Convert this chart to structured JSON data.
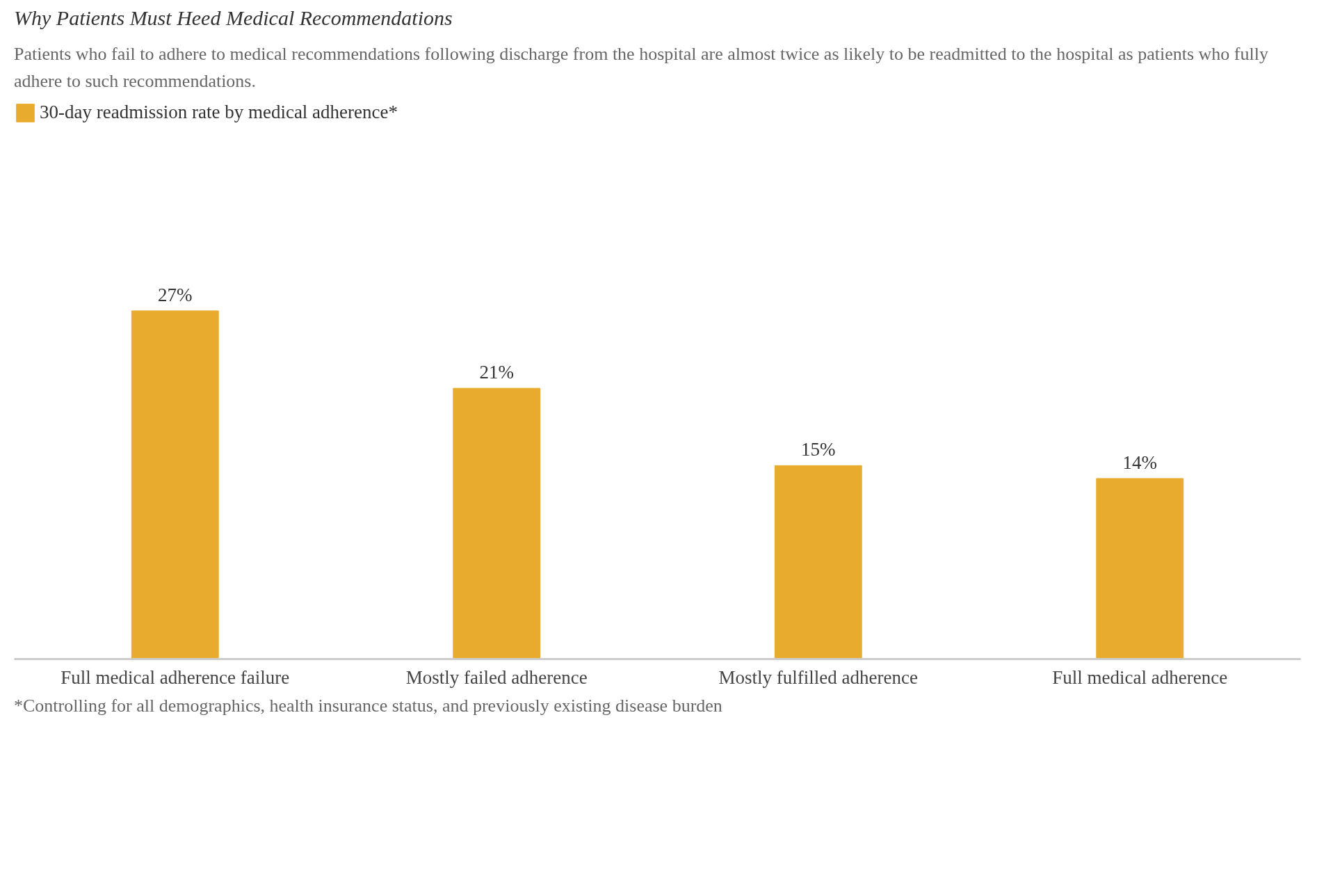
{
  "chart_data": {
    "type": "bar",
    "title": "Why Patients Must Heed Medical Recommendations",
    "subtitle": "Patients who fail to adhere to medical recommendations following discharge from the hospital are almost twice as likely to be readmitted to the hospital as patients who fully adhere to such recommendations.",
    "categories": [
      "Full medical adherence failure",
      "Mostly failed adherence",
      "Mostly fulfilled adherence",
      "Full medical adherence"
    ],
    "series": [
      {
        "name": "30-day readmission rate by medical adherence*",
        "color": "#e9ab2e",
        "values": [
          27,
          21,
          15,
          14
        ],
        "value_labels": [
          "27%",
          "21%",
          "15%",
          "14%"
        ]
      }
    ],
    "legend": "top left",
    "grid": false,
    "tick_labels": "x",
    "annotations": [
      "*Controlling for all demographics, health insurance status, and previously existing disease burden"
    ]
  }
}
